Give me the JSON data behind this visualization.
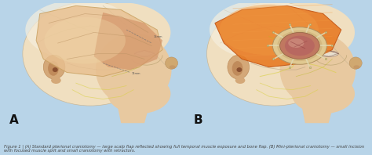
{
  "figure_width": 4.74,
  "figure_height": 1.98,
  "dpi": 100,
  "bg_color": "#b8d4e8",
  "white_bg": "#f8f8f8",
  "panel_A_label": "A",
  "panel_B_label": "B",
  "label_fontsize": 11,
  "label_fontweight": "bold",
  "label_color": "#111111",
  "caption_fontsize": 3.8,
  "caption_color": "#444444",
  "caption_text": "Figure 1 | (A) Standard pterional craniotomy — large scalp flap reflected showing full temporal muscle exposure and bone flap. (B) Mini-pterional craniotomy — small incision with focused muscle split and small craniotomy with retractors.",
  "skin_color": "#e8c9a0",
  "skin_light": "#f0dfc0",
  "skin_shadow": "#d4a870",
  "skull_color": "#ddd0b8",
  "skull_line": "#c0b090",
  "ear_color": "#d4a878",
  "ear_inner": "#c09060",
  "eye_color": "#b89070",
  "nose_color": "#d0a870",
  "flap_A_color": "#e8c090",
  "flap_A_edge": "#c8a060",
  "muscle_A_color": "#d4956a",
  "muscle_A_dark": "#c07840",
  "muscle_B_color": "#e87820",
  "muscle_B_light": "#f09840",
  "muscle_B_dark": "#c05010",
  "craniotomy_ring": "#e0c890",
  "craniotomy_inner": "#c07860",
  "brain_color": "#b86860",
  "brain_highlight": "#d09080",
  "retractor_color": "#e0d8b0",
  "retractor_tip": "#d0c890",
  "nerve_color": "#d8d040",
  "nerve_color2": "#b8b820"
}
